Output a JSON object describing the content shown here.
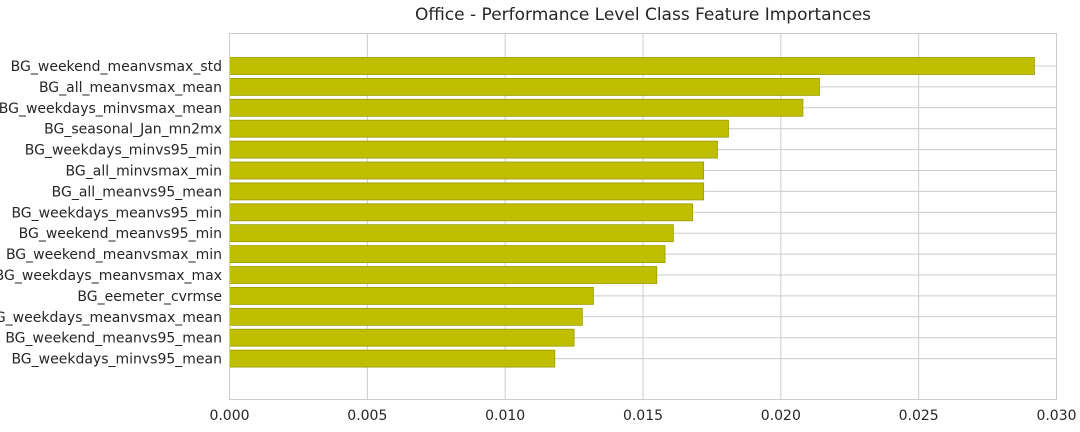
{
  "chart_data": {
    "type": "bar",
    "orientation": "horizontal",
    "title": "Office - Performance Level Class Feature Importances",
    "xlabel": "",
    "ylabel": "",
    "xlim": [
      0,
      0.03
    ],
    "xticks": [
      "0.000",
      "0.005",
      "0.010",
      "0.015",
      "0.020",
      "0.025",
      "0.030"
    ],
    "grid": true,
    "bar_color": "#bfbf00",
    "bar_edge_color": "#9a9a00",
    "categories": [
      "BG_weekend_meanvsmax_std",
      "BG_all_meanvsmax_mean",
      "BG_weekdays_minvsmax_mean",
      "BG_seasonal_Jan_mn2mx",
      "BG_weekdays_minvs95_min",
      "BG_all_minvsmax_min",
      "BG_all_meanvs95_mean",
      "BG_weekdays_meanvs95_min",
      "BG_weekend_meanvs95_min",
      "BG_weekend_meanvsmax_min",
      "BG_weekdays_meanvsmax_max",
      "BG_eemeter_cvrmse",
      "BG_weekdays_meanvsmax_mean",
      "BG_weekend_meanvs95_mean",
      "BG_weekdays_minvs95_mean"
    ],
    "values": [
      0.0292,
      0.0214,
      0.0208,
      0.0181,
      0.0177,
      0.0172,
      0.0172,
      0.0168,
      0.0161,
      0.0158,
      0.0155,
      0.0132,
      0.0128,
      0.0125,
      0.0118
    ]
  }
}
